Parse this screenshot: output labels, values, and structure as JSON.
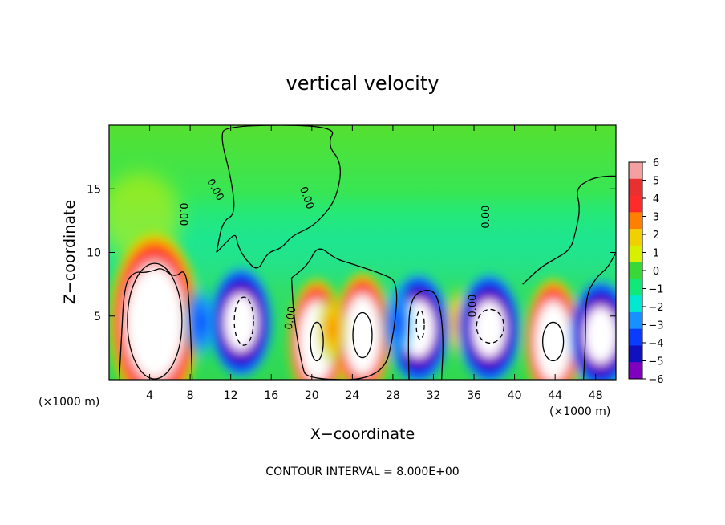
{
  "chart_data": {
    "type": "heatmap",
    "title": "vertical velocity",
    "xlabel": "X−coordinate",
    "ylabel": "Z−coordinate",
    "x_unit_label": "(×1000 m)",
    "x_unit_label_right": "(×1000 m)",
    "footer": "CONTOUR INTERVAL = 8.000E+00",
    "xlim": [
      0,
      50
    ],
    "ylim": [
      0,
      20
    ],
    "x_ticks": [
      4,
      8,
      12,
      16,
      20,
      24,
      28,
      32,
      36,
      40,
      44,
      48
    ],
    "y_ticks": [
      5,
      10,
      15
    ],
    "contour_labels": [
      "0.00",
      "0.00",
      "0.00",
      "0.00",
      "0.00",
      "0.00"
    ],
    "colorbar": {
      "levels": [
        "6",
        "5",
        "4",
        "3",
        "2",
        "1",
        "0",
        "−1",
        "−2",
        "−3",
        "−4",
        "−5",
        "−6"
      ],
      "colors": [
        "#f4a0a0",
        "#e83030",
        "#ff2a2a",
        "#ff8000",
        "#f0d000",
        "#d8f000",
        "#38d838",
        "#10e878",
        "#00e8d0",
        "#1890ff",
        "#0a3cff",
        "#1010c0",
        "#8000c0"
      ]
    },
    "updrafts": [
      {
        "x": 4.5,
        "z": 4.5,
        "peak": 6
      },
      {
        "x": 20.5,
        "z": 3.0,
        "peak": 6
      },
      {
        "x": 25.0,
        "z": 3.5,
        "peak": 6
      },
      {
        "x": 22.0,
        "z": 4.0,
        "peak": 4
      },
      {
        "x": 43.8,
        "z": 3.0,
        "peak": 6
      },
      {
        "x": 34.5,
        "z": 4.5,
        "peak": 3
      }
    ],
    "downdrafts": [
      {
        "x": 13.0,
        "z": 4.5,
        "peak": -6
      },
      {
        "x": 30.5,
        "z": 4.0,
        "peak": -6
      },
      {
        "x": 37.5,
        "z": 4.0,
        "peak": -6
      },
      {
        "x": 48.5,
        "z": 3.5,
        "peak": -6
      },
      {
        "x": 9.0,
        "z": 4.5,
        "peak": -3
      },
      {
        "x": 28.5,
        "z": 4.5,
        "peak": -4
      }
    ]
  }
}
